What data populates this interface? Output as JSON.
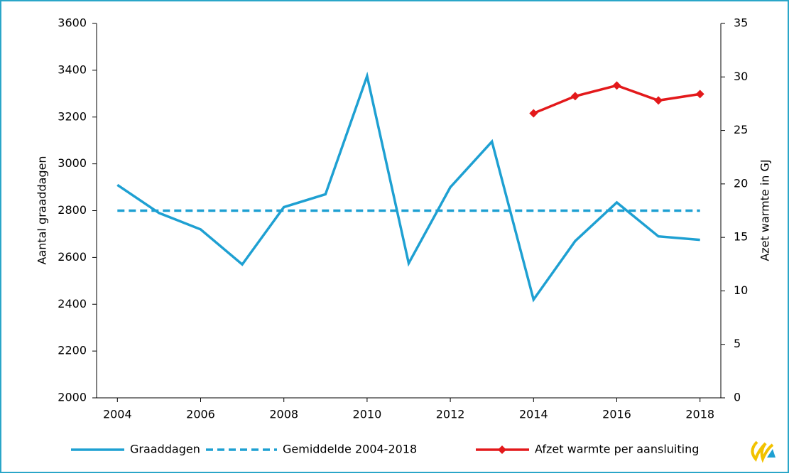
{
  "chart_data": {
    "type": "line",
    "x": [
      2004,
      2005,
      2006,
      2007,
      2008,
      2009,
      2010,
      2011,
      2012,
      2013,
      2014,
      2015,
      2016,
      2017,
      2018
    ],
    "xlim": [
      2003.5,
      2018.5
    ],
    "xticks": [
      2004,
      2006,
      2008,
      2010,
      2012,
      2014,
      2016,
      2018
    ],
    "ylim": [
      2000,
      3600
    ],
    "yticks": [
      2000,
      2200,
      2400,
      2600,
      2800,
      3000,
      3200,
      3400,
      3600
    ],
    "y2lim": [
      0,
      35
    ],
    "y2ticks": [
      0,
      5,
      10,
      15,
      20,
      25,
      30,
      35
    ],
    "ylabel": "Aantal graaddagen",
    "y2label": "Azet warmte in GJ",
    "grid": false,
    "legend": "bottom",
    "series": [
      {
        "name": "Graaddagen",
        "color": "#1ea0d2",
        "values": [
          2910,
          2790,
          2720,
          2570,
          2815,
          2870,
          3375,
          2575,
          2900,
          3095,
          2420,
          2670,
          2835,
          2690,
          2675
        ]
      },
      {
        "name": "Gemiddelde 2004-2018",
        "color": "#1ea0d2",
        "dashed": true,
        "values": [
          2800,
          2800,
          2800,
          2800,
          2800,
          2800,
          2800,
          2800,
          2800,
          2800,
          2800,
          2800,
          2800,
          2800,
          2800
        ]
      },
      {
        "name": "Afzet warmte per aansluiting",
        "color": "#e3191b",
        "marker": "diamond",
        "axis": "y2",
        "values": [
          null,
          null,
          null,
          null,
          null,
          null,
          null,
          null,
          null,
          null,
          26.6,
          28.2,
          29.2,
          27.8,
          28.4
        ]
      }
    ]
  }
}
